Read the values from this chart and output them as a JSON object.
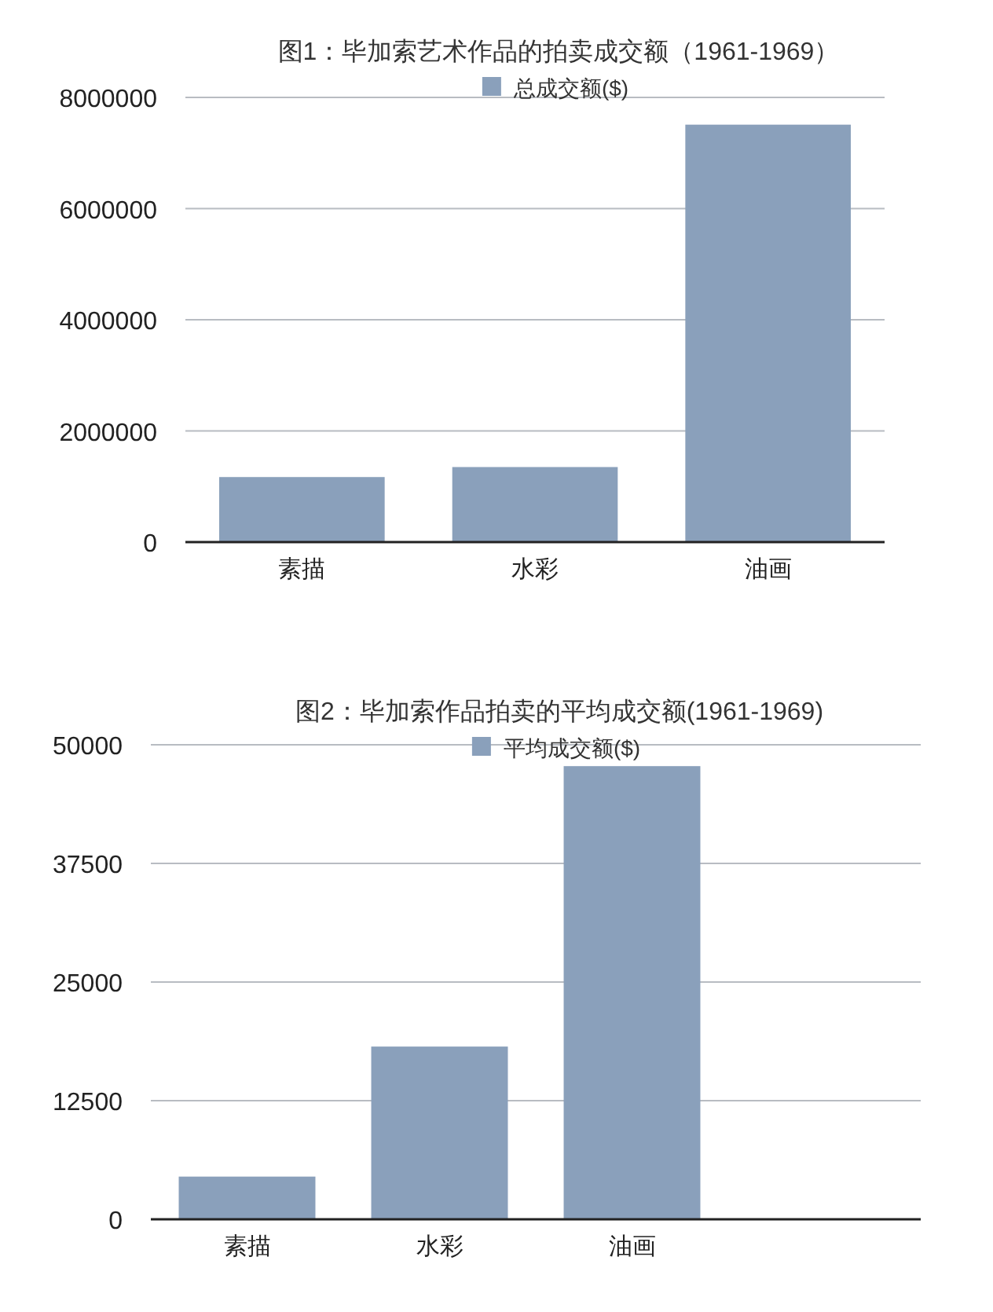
{
  "chart_data": [
    {
      "type": "bar",
      "title": "图1：毕加索艺术作品的拍卖成交额（1961-1969）",
      "categories": [
        "素描",
        "水彩",
        "油画"
      ],
      "series": [
        {
          "name": "总成交额($)",
          "color": "#8aa0bb",
          "values": [
            1170000,
            1350000,
            7510000
          ]
        }
      ],
      "ylim": [
        0,
        8000000
      ],
      "yticks": [
        0,
        2000000,
        4000000,
        6000000,
        8000000
      ],
      "grid": "y",
      "legend": "top"
    },
    {
      "type": "bar",
      "title": "图2：毕加索作品拍卖的平均成交额(1961-1969)",
      "categories": [
        "素描",
        "水彩",
        "油画",
        null
      ],
      "series": [
        {
          "name": "平均成交额($)",
          "color": "#8aa0bb",
          "values": [
            4500,
            18200,
            47750,
            null
          ]
        }
      ],
      "ylim": [
        0,
        50000
      ],
      "yticks": [
        0,
        12500,
        25000,
        37500,
        50000
      ],
      "grid": "y",
      "legend": "top"
    }
  ]
}
